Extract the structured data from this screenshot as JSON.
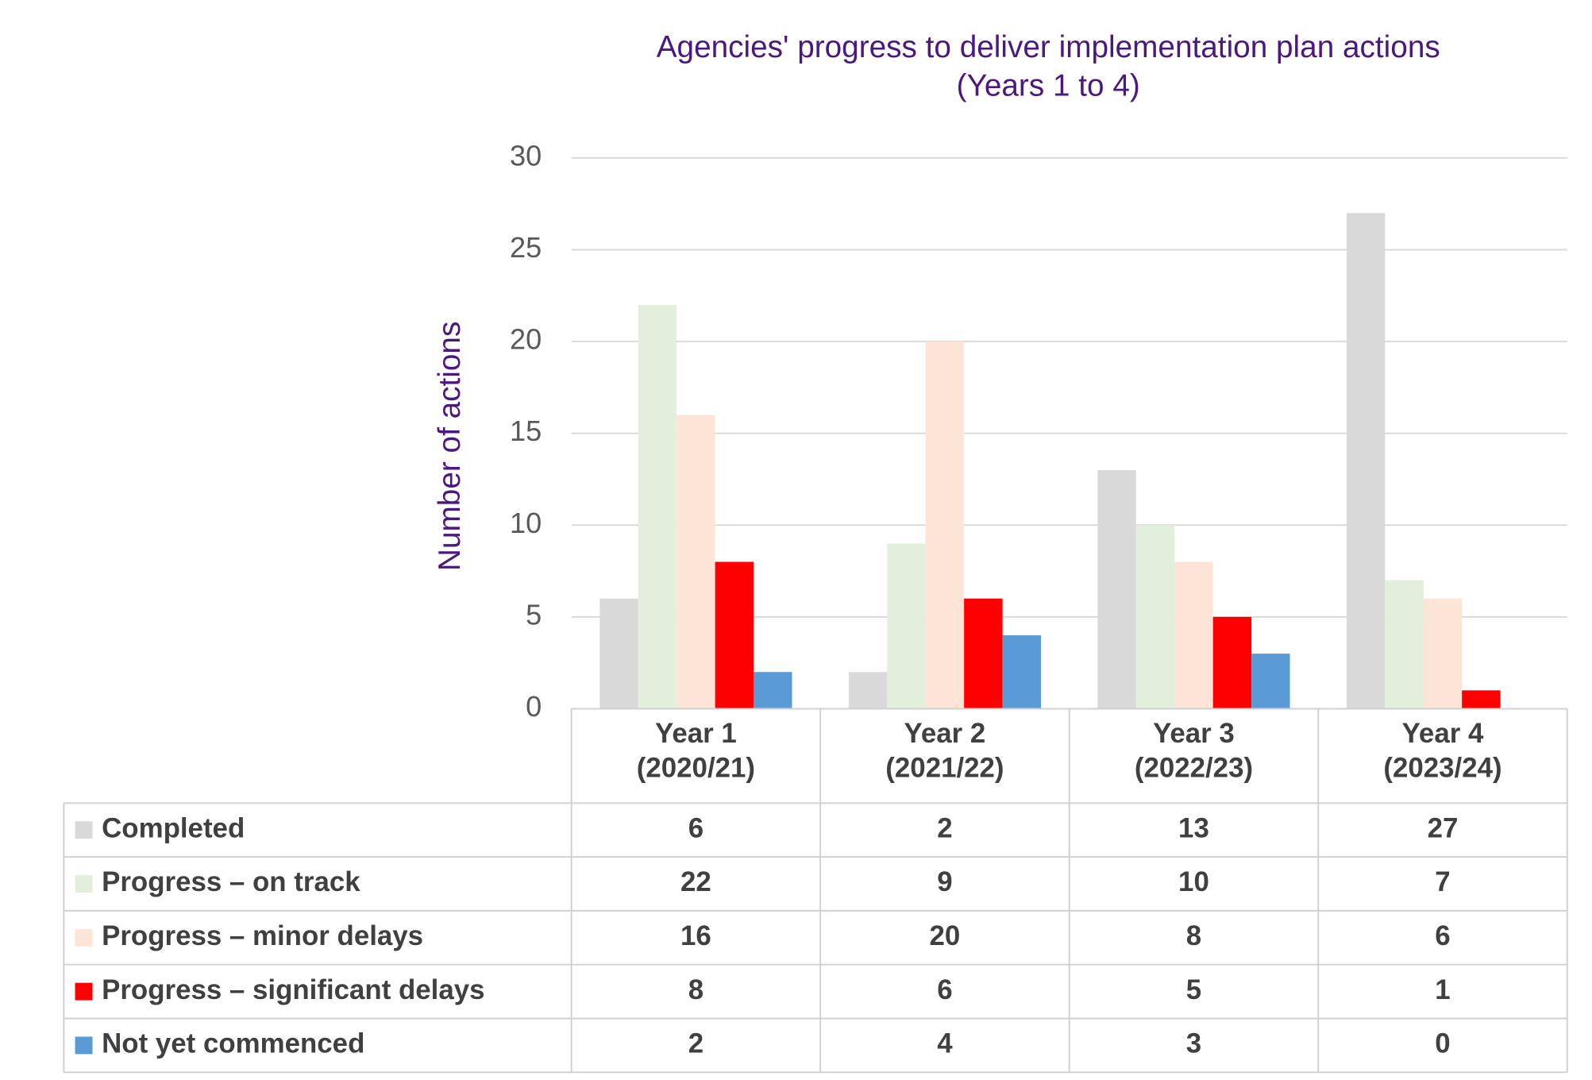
{
  "chart_data": {
    "type": "bar",
    "title": "Agencies' progress to deliver implementation plan actions\n(Years 1 to 4)",
    "y_label": "Number of actions",
    "categories": [
      "Year 1\n(2020/21)",
      "Year 2\n(2021/22)",
      "Year 3\n(2022/23)",
      "Year 4\n(2023/24)"
    ],
    "series": [
      {
        "name": "Completed",
        "color": "#d9d9d9",
        "values": [
          6,
          2,
          13,
          27
        ]
      },
      {
        "name": "Progress – on track",
        "color": "#e2efda",
        "values": [
          22,
          9,
          10,
          7
        ]
      },
      {
        "name": "Progress – minor delays",
        "color": "#fce4d6",
        "values": [
          16,
          20,
          8,
          6
        ]
      },
      {
        "name": "Progress – significant delays",
        "color": "#ff0000",
        "values": [
          8,
          6,
          5,
          1
        ]
      },
      {
        "name": "Not yet commenced",
        "color": "#5b9bd5",
        "values": [
          2,
          4,
          3,
          0
        ]
      }
    ],
    "ylim": [
      0,
      30
    ],
    "yticks": [
      0,
      5,
      10,
      15,
      20,
      25,
      30
    ],
    "grid": true,
    "data_table": true
  }
}
